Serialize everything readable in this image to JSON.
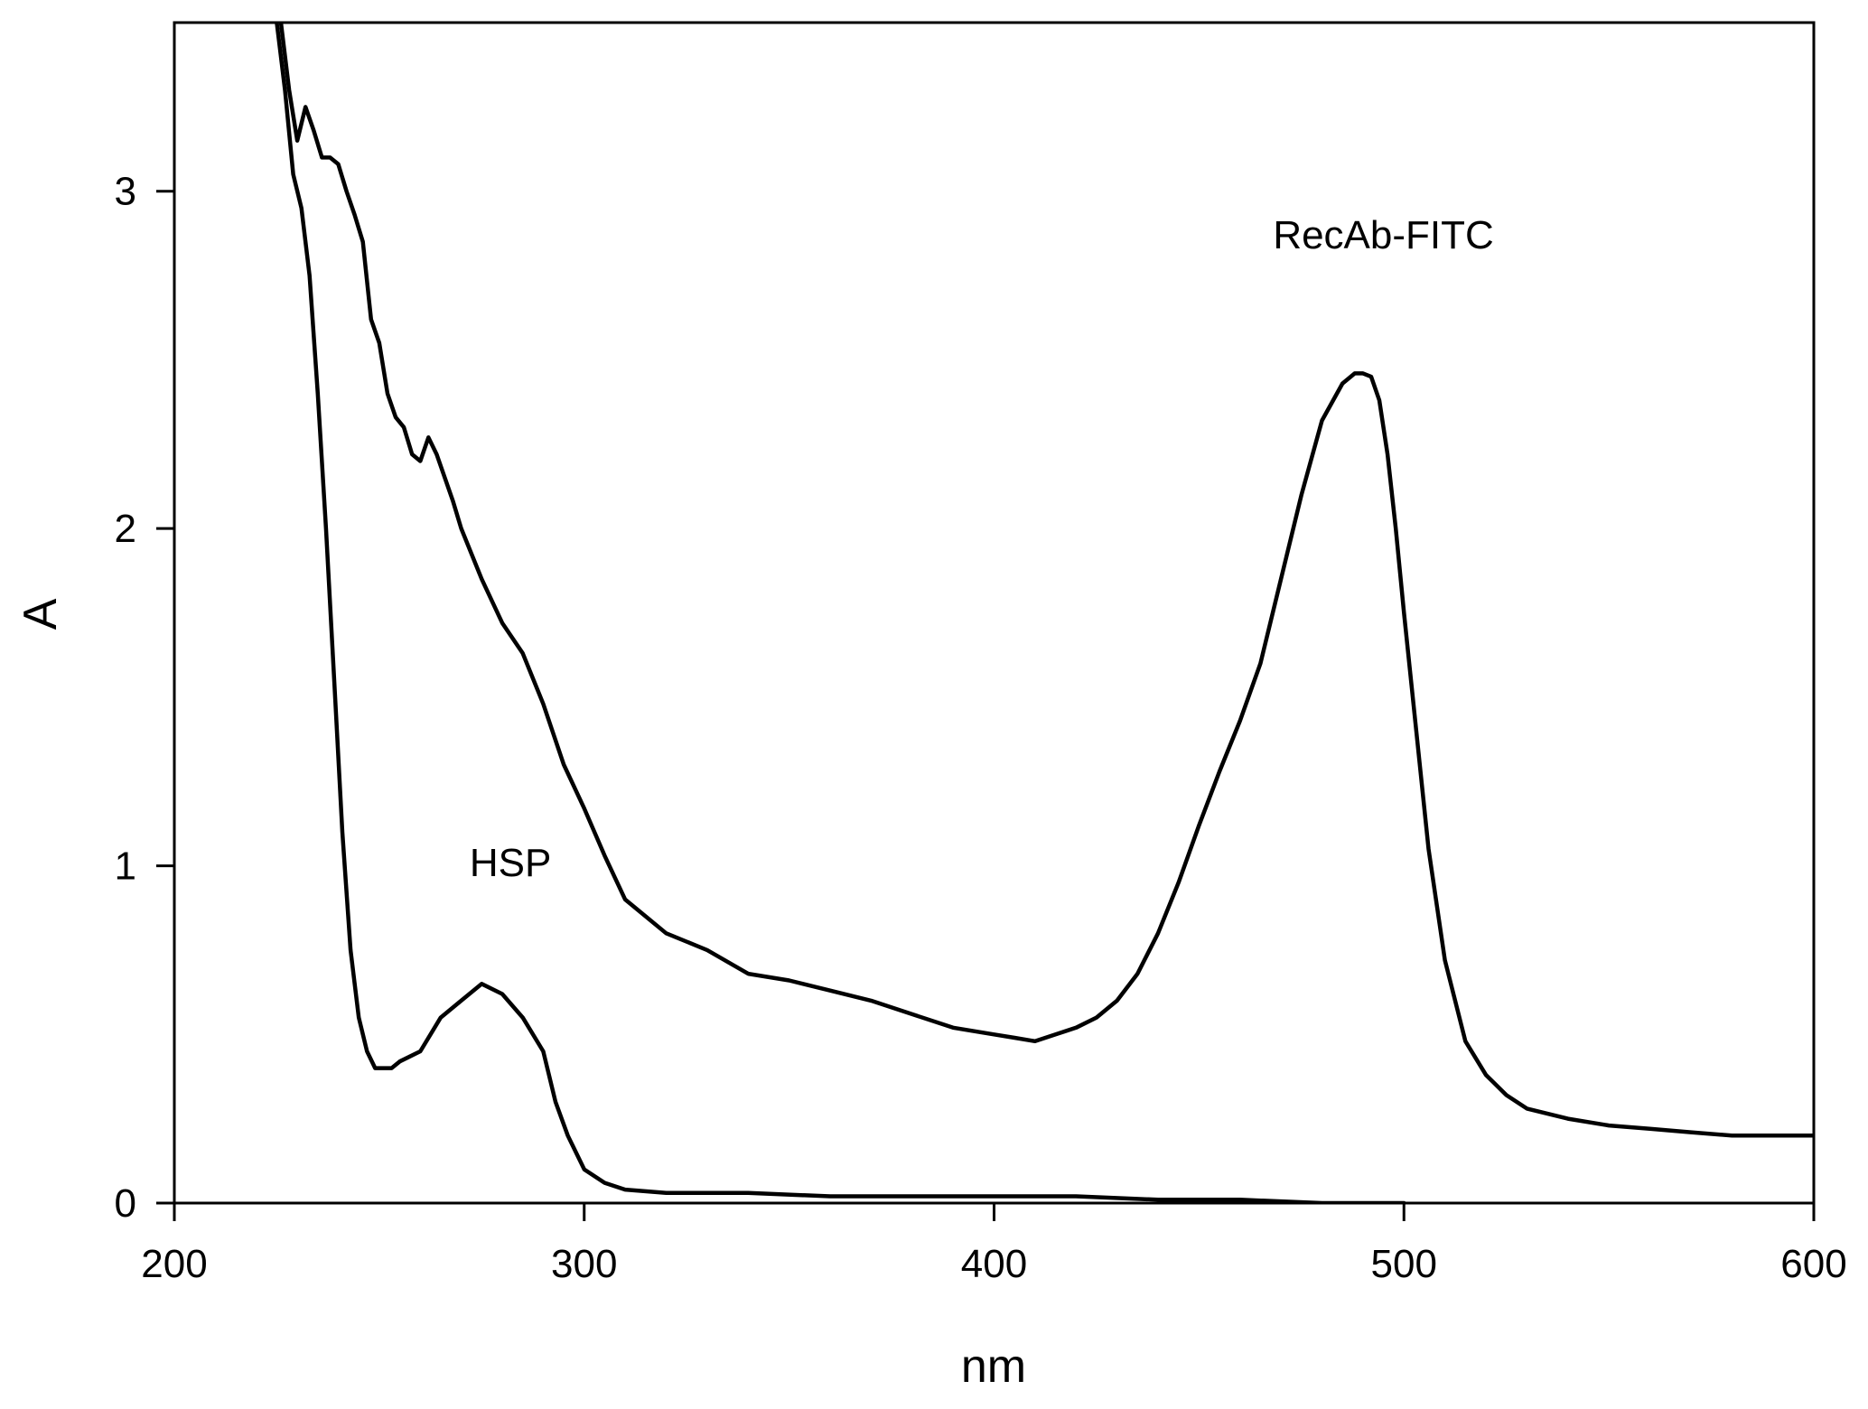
{
  "chart_data": {
    "type": "line",
    "title": "",
    "xlabel": "nm",
    "ylabel": "A",
    "xlim": [
      200,
      600
    ],
    "ylim": [
      0,
      3.5
    ],
    "x_ticks": [
      200,
      300,
      400,
      500,
      600
    ],
    "y_ticks": [
      0,
      1,
      2,
      3
    ],
    "grid": false,
    "legend": "none",
    "line_color": "#000000",
    "annotations": [
      {
        "text": "RecAb-FITC",
        "x": 495,
        "y": 2.83
      },
      {
        "text": "HSP",
        "x": 282,
        "y": 0.97
      }
    ],
    "series": [
      {
        "x": [
          226,
          228,
          230,
          232,
          234,
          236,
          238,
          240,
          242,
          244,
          246,
          248,
          250,
          252,
          254,
          256,
          258,
          260,
          262,
          264,
          266,
          268,
          270,
          275,
          280,
          285,
          290,
          295,
          300,
          305,
          310,
          320,
          330,
          340,
          350,
          360,
          370,
          380,
          390,
          400,
          405,
          410,
          415,
          420,
          425,
          430,
          435,
          440,
          445,
          450,
          455,
          460,
          465,
          470,
          475,
          480,
          485,
          488,
          490,
          492,
          494,
          496,
          498,
          500,
          503,
          506,
          510,
          515,
          520,
          525,
          530,
          540,
          550,
          560,
          570,
          580,
          590,
          600
        ],
        "y": [
          3.5,
          3.3,
          3.15,
          3.25,
          3.18,
          3.1,
          3.1,
          3.08,
          3.0,
          2.93,
          2.85,
          2.62,
          2.55,
          2.4,
          2.33,
          2.3,
          2.22,
          2.2,
          2.27,
          2.22,
          2.15,
          2.08,
          2.0,
          1.85,
          1.72,
          1.63,
          1.48,
          1.3,
          1.17,
          1.03,
          0.9,
          0.8,
          0.75,
          0.68,
          0.66,
          0.63,
          0.6,
          0.56,
          0.52,
          0.5,
          0.49,
          0.48,
          0.5,
          0.52,
          0.55,
          0.6,
          0.68,
          0.8,
          0.95,
          1.12,
          1.28,
          1.43,
          1.6,
          1.85,
          2.1,
          2.32,
          2.43,
          2.46,
          2.46,
          2.45,
          2.38,
          2.22,
          2.0,
          1.75,
          1.4,
          1.05,
          0.72,
          0.48,
          0.38,
          0.32,
          0.28,
          0.25,
          0.23,
          0.22,
          0.21,
          0.2,
          0.2,
          0.2
        ]
      },
      {
        "x": [
          225,
          227,
          229,
          231,
          233,
          235,
          237,
          239,
          241,
          243,
          245,
          247,
          249,
          251,
          253,
          255,
          260,
          265,
          270,
          275,
          280,
          285,
          290,
          293,
          296,
          300,
          305,
          310,
          320,
          340,
          360,
          380,
          400,
          420,
          440,
          460,
          480,
          490,
          500
        ],
        "y": [
          3.5,
          3.3,
          3.05,
          2.95,
          2.75,
          2.4,
          2.0,
          1.55,
          1.1,
          0.75,
          0.55,
          0.45,
          0.4,
          0.4,
          0.4,
          0.42,
          0.45,
          0.55,
          0.6,
          0.65,
          0.62,
          0.55,
          0.45,
          0.3,
          0.2,
          0.1,
          0.06,
          0.04,
          0.03,
          0.03,
          0.02,
          0.02,
          0.02,
          0.02,
          0.01,
          0.01,
          0.0,
          0.0,
          0.0
        ]
      }
    ]
  }
}
